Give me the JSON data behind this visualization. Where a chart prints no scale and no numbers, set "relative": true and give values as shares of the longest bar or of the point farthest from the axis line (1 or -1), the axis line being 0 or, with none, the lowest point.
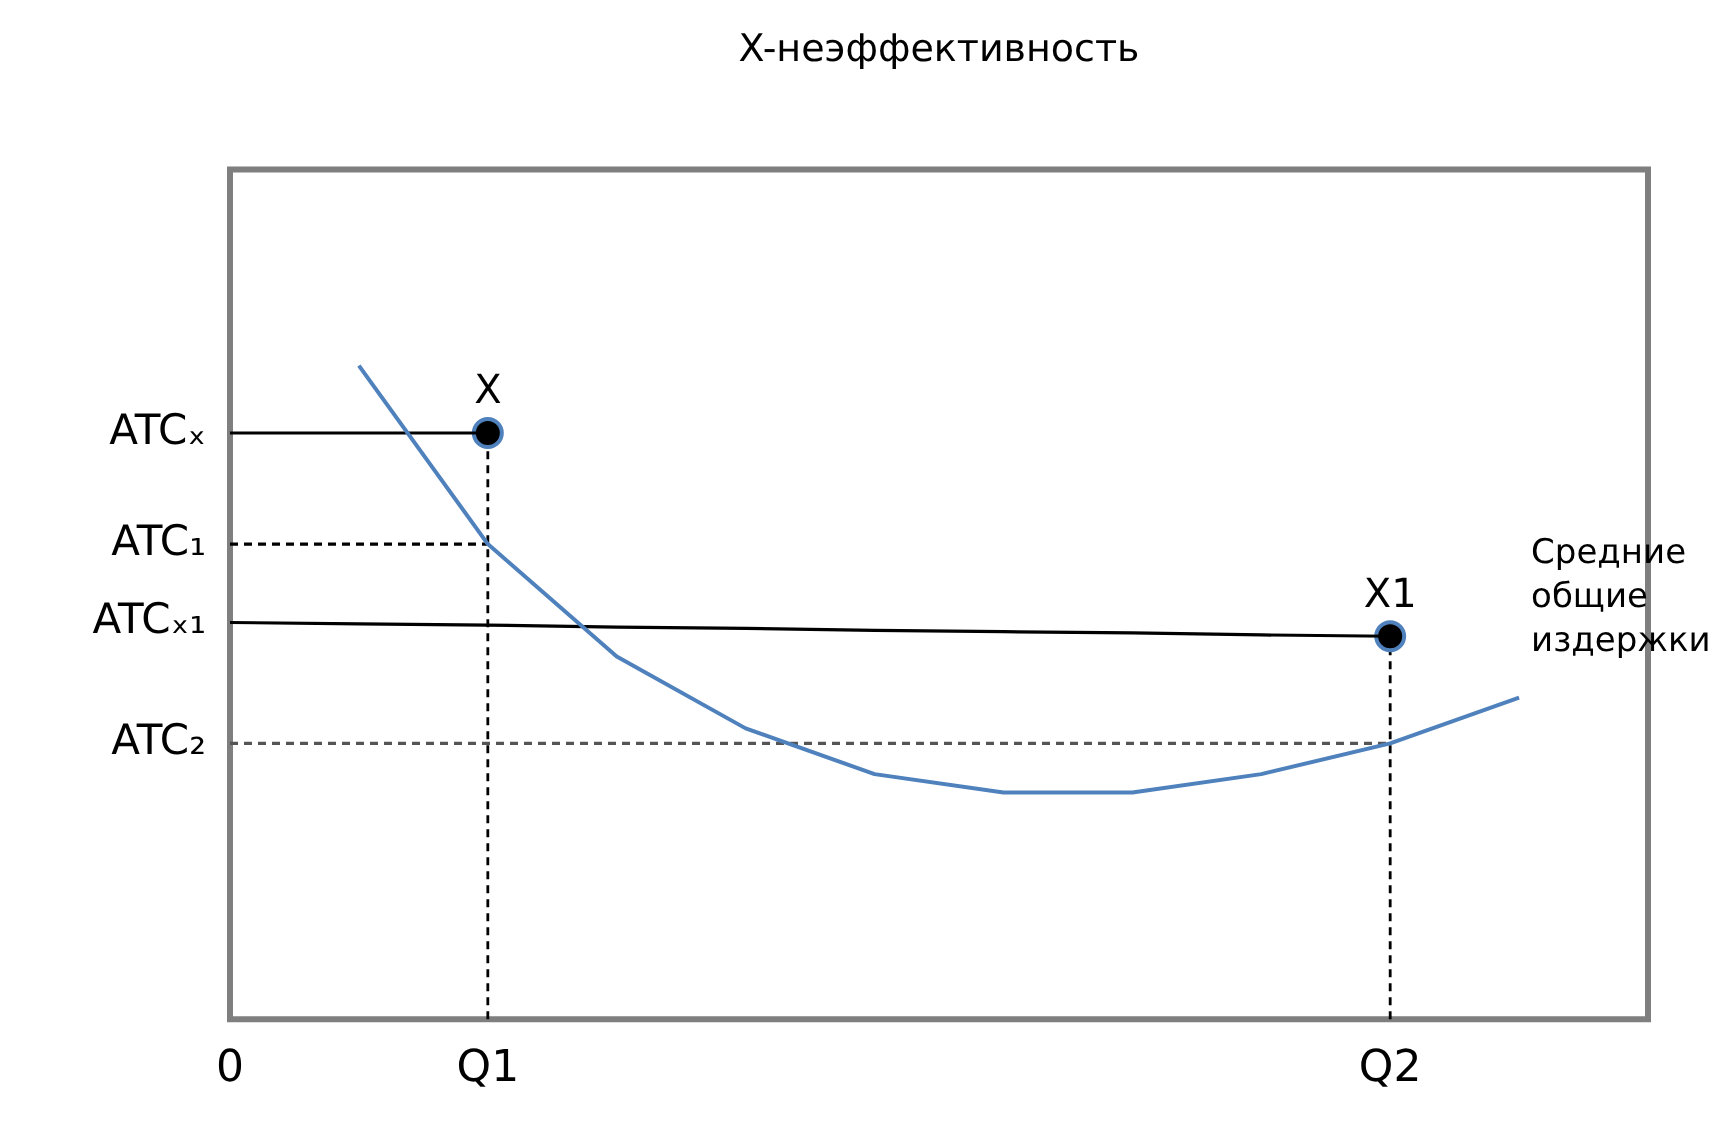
{
  "chart_data": {
    "type": "line",
    "title": "X-неэффективность",
    "relative": true,
    "categories": [
      "0",
      null,
      "Q1",
      null,
      null,
      null,
      null,
      null,
      null,
      "Q2",
      null,
      null
    ],
    "grid": false,
    "legend": false,
    "line_style": "solid",
    "annotations": [
      {
        "text": "ATCₓ",
        "x": "0",
        "y": 0.897
      },
      {
        "text": "ATC₁",
        "x": "0",
        "y": 0.727
      },
      {
        "text": "ATCₓ₁",
        "x": "0",
        "y": 0.607
      },
      {
        "text": "ATC₂",
        "x": "0",
        "y": 0.422
      }
    ],
    "series": [
      {
        "name": "Средние общие издержки",
        "color": "#4f81bd",
        "marker": "none",
        "values": [
          null,
          1,
          0.727,
          0.555,
          0.445,
          0.375,
          0.347,
          0.347,
          0.375,
          0.422,
          0.492,
          null
        ]
      },
      {
        "color": "#000000",
        "marker": "none",
        "values": [
          0.897,
          0.897,
          0.897,
          null,
          null,
          null,
          null,
          null,
          null,
          null,
          null,
          null
        ]
      },
      {
        "color": "#000000",
        "marker": "none",
        "values": [
          0.607,
          0.605,
          0.603,
          0.6,
          0.598,
          0.595,
          0.593,
          0.591,
          0.588,
          0.586,
          null,
          null
        ]
      },
      {
        "color": "#000000",
        "marker": "none",
        "line_style": "dashed",
        "values": [
          0.727,
          0.727,
          0.727,
          null,
          null,
          null,
          null,
          null,
          null,
          null,
          null,
          null
        ]
      },
      {
        "color": "#555555",
        "marker": "none",
        "line_style": "dashed",
        "values": [
          0.422,
          0.422,
          0.422,
          0.422,
          0.422,
          0.422,
          0.422,
          0.422,
          0.422,
          0.422,
          null,
          null
        ]
      },
      {
        "name": "X",
        "type": "lollipop",
        "marker": "circle",
        "color": "#000000",
        "line_style": "dashed",
        "values": [
          null,
          null,
          0.897,
          null,
          null,
          null,
          null,
          null,
          null,
          null,
          null,
          null
        ]
      },
      {
        "name": "X1",
        "type": "lollipop",
        "marker": "circle",
        "color": "#000000",
        "line_style": "dashed",
        "values": [
          null,
          null,
          null,
          null,
          null,
          null,
          null,
          null,
          null,
          0.586,
          null,
          null
        ]
      }
    ]
  }
}
